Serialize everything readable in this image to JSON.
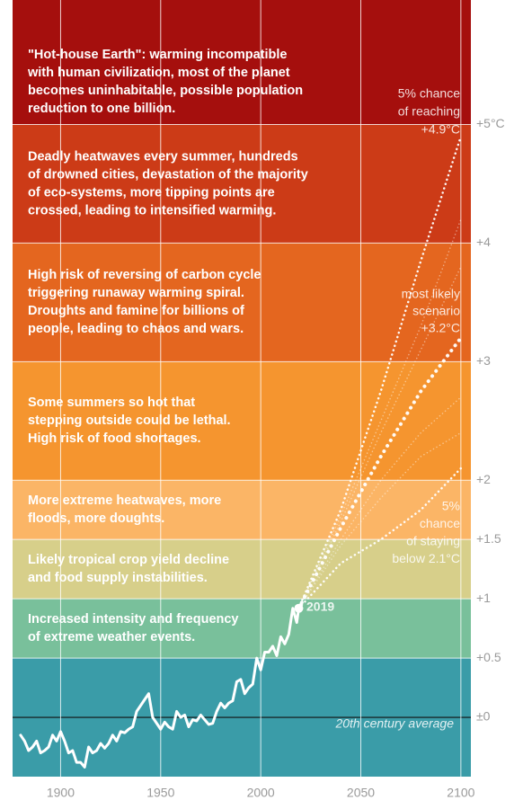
{
  "chart_data": {
    "type": "line",
    "xlim": [
      1876,
      2105
    ],
    "xticks": [
      1900,
      1950,
      2000,
      2050,
      2100
    ],
    "ylim": [
      -0.5,
      6.05
    ],
    "yticks": [
      {
        "value": 0,
        "label": "±0"
      },
      {
        "value": 0.5,
        "label": "+0.5"
      },
      {
        "value": 1,
        "label": "+1"
      },
      {
        "value": 1.5,
        "label": "+1.5"
      },
      {
        "value": 2,
        "label": "+2"
      },
      {
        "value": 3,
        "label": "+3"
      },
      {
        "value": 4,
        "label": "+4"
      },
      {
        "value": 5,
        "label": "+5°C"
      }
    ],
    "grid": true,
    "bands": [
      {
        "from": -0.5,
        "to": 0.5,
        "color": "#3a9ca8"
      },
      {
        "from": 0.5,
        "to": 1,
        "color": "#79c09b",
        "lines": [
          "Increased intensity and frequency",
          "of extreme weather events."
        ]
      },
      {
        "from": 1,
        "to": 1.5,
        "color": "#d7cf8a",
        "lines": [
          "Likely tropical crop yield decline",
          "and food supply instabilities."
        ]
      },
      {
        "from": 1.5,
        "to": 2,
        "color": "#fbb566",
        "lines": [
          "More extreme heatwaves, more",
          "floods, more doughts."
        ]
      },
      {
        "from": 2,
        "to": 3,
        "color": "#f5952f",
        "lines": [
          "Some summers so hot that",
          "stepping outside could be lethal.",
          "High risk of food shortages."
        ]
      },
      {
        "from": 3,
        "to": 4,
        "color": "#e4661f",
        "lines": [
          "High risk of reversing of carbon cycle",
          "triggering runaway warming spiral.",
          "Droughts and famine for billions of",
          "people, leading to chaos and wars."
        ]
      },
      {
        "from": 4,
        "to": 5,
        "color": "#cc3b17",
        "lines": [
          "Deadly heatwaves every summer, hundreds",
          "of drowned cities, devastation of the majority",
          "of eco-systems, more tipping points are",
          "crossed, leading to intensified warming."
        ]
      },
      {
        "from": 5,
        "to": 6.05,
        "color": "#a50f0d",
        "lines": [
          "\"Hot-house Earth\": warming incompatible",
          "with human civilization, most of the planet",
          "becomes uninhabitable, possible population",
          "reduction to one billion."
        ]
      }
    ],
    "series": [
      {
        "color": "#ffffff",
        "style": "solid",
        "x": [
          1880,
          1882,
          1884,
          1886,
          1888,
          1890,
          1892,
          1894,
          1896,
          1898,
          1900,
          1902,
          1904,
          1906,
          1908,
          1910,
          1912,
          1914,
          1916,
          1918,
          1920,
          1922,
          1924,
          1926,
          1928,
          1930,
          1932,
          1934,
          1936,
          1938,
          1940,
          1942,
          1944,
          1946,
          1948,
          1950,
          1952,
          1954,
          1956,
          1958,
          1960,
          1962,
          1964,
          1966,
          1968,
          1970,
          1972,
          1974,
          1976,
          1978,
          1980,
          1982,
          1984,
          1986,
          1988,
          1990,
          1992,
          1994,
          1996,
          1998,
          2000,
          2002,
          2004,
          2006,
          2008,
          2010,
          2012,
          2014,
          2016,
          2018,
          2019
        ],
        "values": [
          -0.15,
          -0.2,
          -0.28,
          -0.25,
          -0.2,
          -0.3,
          -0.28,
          -0.25,
          -0.15,
          -0.2,
          -0.12,
          -0.2,
          -0.3,
          -0.28,
          -0.38,
          -0.38,
          -0.42,
          -0.25,
          -0.3,
          -0.28,
          -0.22,
          -0.26,
          -0.22,
          -0.15,
          -0.2,
          -0.12,
          -0.13,
          -0.1,
          -0.08,
          0.05,
          0.1,
          0.15,
          0.2,
          0.0,
          -0.05,
          -0.1,
          -0.04,
          -0.08,
          -0.1,
          0.05,
          0.0,
          0.02,
          -0.08,
          -0.02,
          -0.03,
          0.02,
          -0.02,
          -0.06,
          -0.05,
          0.05,
          0.12,
          0.08,
          0.12,
          0.14,
          0.3,
          0.32,
          0.2,
          0.25,
          0.28,
          0.5,
          0.4,
          0.55,
          0.55,
          0.6,
          0.52,
          0.68,
          0.62,
          0.7,
          0.92,
          0.8,
          0.92
        ]
      },
      {
        "color": "#ffffff",
        "style": "dotted",
        "x": [
          2019,
          2040,
          2060,
          2080,
          2100
        ],
        "values": [
          0.92,
          1.75,
          2.75,
          3.85,
          4.9
        ]
      },
      {
        "color": "#ffffff",
        "style": "dotted-bold",
        "x": [
          2019,
          2040,
          2060,
          2080,
          2100
        ],
        "values": [
          0.92,
          1.6,
          2.2,
          2.75,
          3.2
        ]
      },
      {
        "color": "#ffffff",
        "style": "dotted",
        "x": [
          2019,
          2040,
          2060,
          2080,
          2100
        ],
        "values": [
          0.92,
          1.3,
          1.5,
          1.75,
          2.1
        ]
      },
      {
        "color": "#ffffff",
        "style": "faint",
        "x": [
          2019,
          2040,
          2060,
          2080,
          2100
        ],
        "values": [
          0.92,
          1.5,
          2.0,
          2.4,
          2.7
        ]
      },
      {
        "color": "#ffffff",
        "style": "faint",
        "x": [
          2019,
          2040,
          2060,
          2080,
          2100
        ],
        "values": [
          0.92,
          1.65,
          2.4,
          3.1,
          3.8
        ]
      },
      {
        "color": "#ffffff",
        "style": "faint",
        "x": [
          2019,
          2040,
          2060,
          2080,
          2100
        ],
        "values": [
          0.92,
          1.45,
          1.85,
          2.2,
          2.4
        ]
      },
      {
        "color": "#ffffff",
        "style": "faint",
        "x": [
          2019,
          2040,
          2060,
          2080,
          2100
        ],
        "values": [
          0.92,
          1.7,
          2.5,
          3.3,
          4.2
        ]
      }
    ],
    "annotations": [
      {
        "lines": [
          "5% chance",
          "of reaching",
          "+4.9°C"
        ]
      },
      {
        "lines": [
          "most likely",
          "scenario",
          "+3.2°C"
        ]
      },
      {
        "lines": [
          "5%",
          "chance",
          "of staying",
          "below 2.1°C"
        ]
      },
      {
        "lines": [
          "2019"
        ]
      },
      {
        "lines": [
          "20th century average"
        ]
      }
    ]
  }
}
